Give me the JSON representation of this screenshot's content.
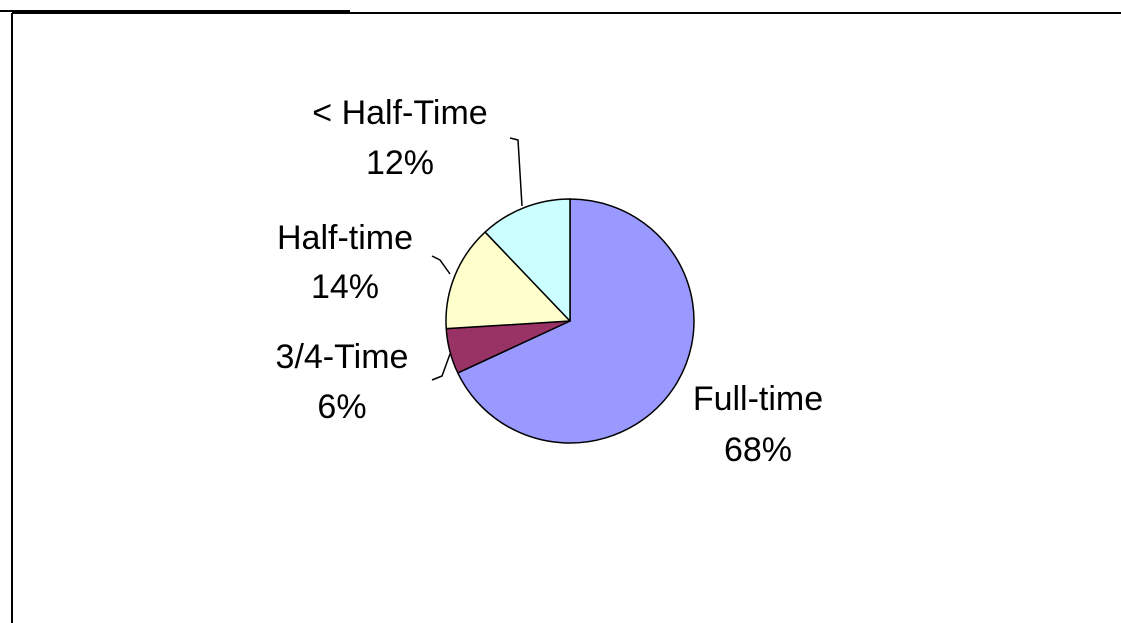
{
  "chart_data": {
    "type": "pie",
    "title": "",
    "slices": [
      {
        "label": "Full-time",
        "percent_label": "68%",
        "value": 68,
        "color": "#9999FF"
      },
      {
        "label": "3/4-Time",
        "percent_label": "6%",
        "value": 6,
        "color": "#993366"
      },
      {
        "label": "Half-time",
        "percent_label": "14%",
        "value": 14,
        "color": "#FFFFCC"
      },
      {
        "label": "< Half-Time",
        "percent_label": "12%",
        "value": 12,
        "color": "#CCFFFF"
      }
    ],
    "start": "12 o'clock",
    "direction": "clockwise",
    "legend": "none",
    "data_labels": "outside with leader lines"
  }
}
